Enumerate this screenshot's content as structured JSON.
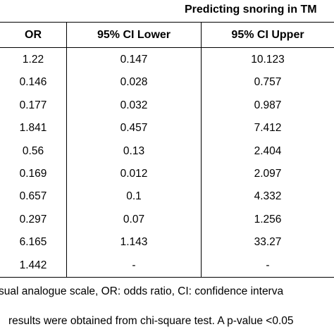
{
  "table": {
    "group_title": "Predicting snoring in TM",
    "columns": [
      "OR",
      "95% CI Lower",
      "95% CI Upper"
    ],
    "rows": [
      [
        "1.22",
        "0.147",
        "10.123"
      ],
      [
        "0.146",
        "0.028",
        "0.757"
      ],
      [
        "0.177",
        "0.032",
        "0.987"
      ],
      [
        "1.841",
        "0.457",
        "7.412"
      ],
      [
        "0.56",
        "0.13",
        "2.404"
      ],
      [
        "0.169",
        "0.012",
        "2.097"
      ],
      [
        "0.657",
        "0.1",
        "4.332"
      ],
      [
        "0.297",
        "0.07",
        "1.256"
      ],
      [
        "6.165",
        "1.143",
        "33.27"
      ],
      [
        "1.442",
        "-",
        "-"
      ]
    ]
  },
  "footnotes": [
    "sual analogue scale, OR: odds ratio, CI: confidence interva",
    "results were obtained from chi-square test. A p-value <0.05"
  ]
}
